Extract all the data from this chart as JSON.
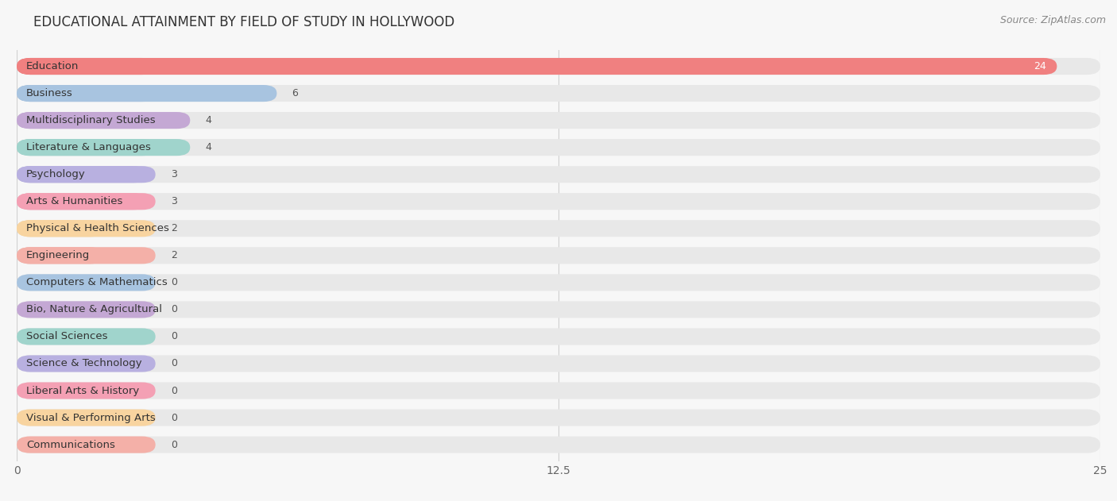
{
  "title": "EDUCATIONAL ATTAINMENT BY FIELD OF STUDY IN HOLLYWOOD",
  "source": "Source: ZipAtlas.com",
  "categories": [
    "Education",
    "Business",
    "Multidisciplinary Studies",
    "Literature & Languages",
    "Psychology",
    "Arts & Humanities",
    "Physical & Health Sciences",
    "Engineering",
    "Computers & Mathematics",
    "Bio, Nature & Agricultural",
    "Social Sciences",
    "Science & Technology",
    "Liberal Arts & History",
    "Visual & Performing Arts",
    "Communications"
  ],
  "values": [
    24,
    6,
    4,
    4,
    3,
    3,
    2,
    2,
    0,
    0,
    0,
    0,
    0,
    0,
    0
  ],
  "colors": [
    "#f08080",
    "#a8c4e0",
    "#c4a8d4",
    "#a0d4cc",
    "#b8b0e0",
    "#f4a0b4",
    "#f8d4a0",
    "#f4b0a8",
    "#a8c4e0",
    "#c4a8d4",
    "#a0d4cc",
    "#b8b0e0",
    "#f4a0b4",
    "#f8d4a0",
    "#f4b0a8"
  ],
  "xlim": [
    0,
    25
  ],
  "xticks": [
    0,
    12.5,
    25
  ],
  "background_color": "#f7f7f7",
  "bar_bg_color": "#e8e8e8",
  "title_fontsize": 12,
  "label_fontsize": 9.5,
  "value_fontsize": 9,
  "source_fontsize": 9,
  "grid_color": "#d0d0d0",
  "text_color": "#333333",
  "value_color_outside": "#555555",
  "value_color_inside": "#ffffff"
}
